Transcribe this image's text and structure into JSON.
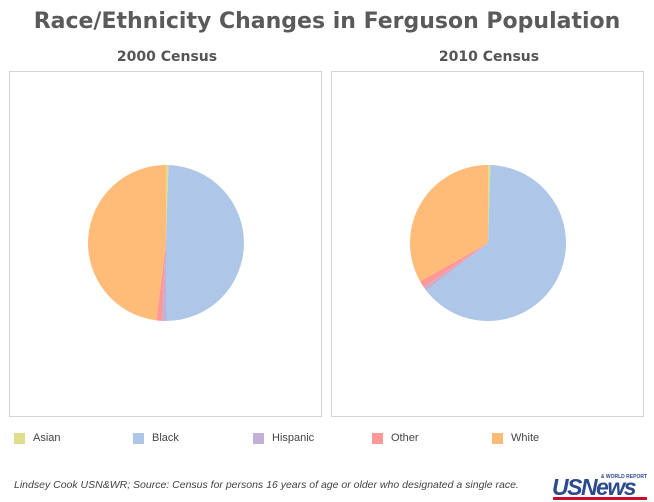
{
  "title": "Race/Ethnicity Changes in Ferguson Population",
  "legend": [
    {
      "label": "Asian",
      "color": "#dede8e"
    },
    {
      "label": "Black",
      "color": "#aec7e8"
    },
    {
      "label": "Hispanic",
      "color": "#c5b0d5"
    },
    {
      "label": "Other",
      "color": "#ff9896"
    },
    {
      "label": "White",
      "color": "#ffbb78"
    }
  ],
  "chart_data": [
    {
      "type": "pie",
      "title": "2000 Census",
      "labels": [
        "Asian",
        "Black",
        "Hispanic",
        "Other",
        "White"
      ],
      "values": [
        0.5,
        49.5,
        0.8,
        1.2,
        48.0
      ],
      "colors": [
        "#dede8e",
        "#aec7e8",
        "#c5b0d5",
        "#ff9896",
        "#ffbb78"
      ]
    },
    {
      "type": "pie",
      "title": "2010 Census",
      "labels": [
        "Asian",
        "Black",
        "Hispanic",
        "Other",
        "White"
      ],
      "values": [
        0.5,
        64.0,
        0.8,
        1.5,
        33.2
      ],
      "colors": [
        "#dede8e",
        "#aec7e8",
        "#c5b0d5",
        "#ff9896",
        "#ffbb78"
      ]
    }
  ],
  "footer": "Lindsey Cook USN&WR; Source: Census for persons 16 years of age or older who designated a single race.",
  "logo": {
    "main": "USNews",
    "sub": "& WORLD REPORT"
  }
}
